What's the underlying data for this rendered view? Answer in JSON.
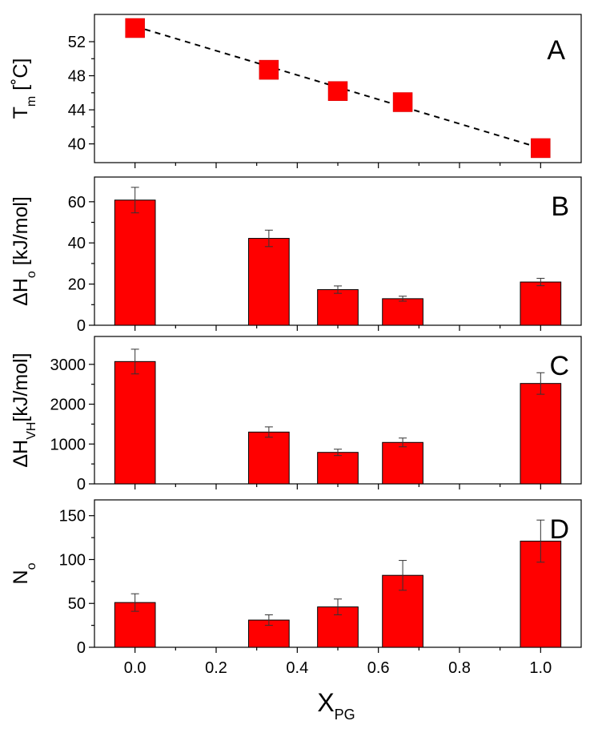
{
  "colors": {
    "bar": "#ff0000",
    "marker": "#ff0000",
    "axis": "#000000"
  },
  "x_axis": {
    "label_main": "X",
    "label_sub": "PG",
    "range": [
      -0.1,
      1.1
    ],
    "ticks": [
      0.0,
      0.2,
      0.4,
      0.6,
      0.8,
      1.0
    ],
    "tick_labels": [
      "0.0",
      "0.2",
      "0.4",
      "0.6",
      "0.8",
      "1.0"
    ]
  },
  "chart_data": [
    {
      "panel": "A",
      "type": "scatter",
      "ylabel_main": "T",
      "ylabel_sub": "m",
      "ylabel_tail": " [˚C]",
      "ylim": [
        37.8,
        55.2
      ],
      "yticks": [
        40,
        44,
        48,
        52
      ],
      "ytick_labels": [
        "40",
        "44",
        "48",
        "52"
      ],
      "x": [
        0.0,
        0.33,
        0.5,
        0.66,
        1.0
      ],
      "y": [
        53.6,
        48.7,
        46.2,
        44.9,
        39.5
      ],
      "fit_line": {
        "x": [
          0.0,
          1.0
        ],
        "y": [
          53.8,
          39.5
        ],
        "style": "dashed"
      }
    },
    {
      "panel": "B",
      "type": "bar",
      "ylabel_main": "ΔH",
      "ylabel_sub": "o",
      "ylabel_tail": " [kJ/mol]",
      "ylim": [
        0,
        72
      ],
      "yticks": [
        0,
        20,
        40,
        60
      ],
      "ytick_labels": [
        "0",
        "20",
        "40",
        "60"
      ],
      "x": [
        0.0,
        0.33,
        0.5,
        0.66,
        1.0
      ],
      "values": [
        60.8,
        42.2,
        17.3,
        12.9,
        21.0
      ],
      "errors": [
        6.2,
        4.0,
        1.8,
        1.2,
        1.8
      ],
      "bar_width": 0.1
    },
    {
      "panel": "C",
      "type": "bar",
      "ylabel_main": "ΔH",
      "ylabel_sub": "VH",
      "ylabel_tail": "[kJ/mol]",
      "ylim": [
        0,
        3700
      ],
      "yticks": [
        0,
        1000,
        2000,
        3000
      ],
      "ytick_labels": [
        "0",
        "1000",
        "2000",
        "3000"
      ],
      "x": [
        0.0,
        0.33,
        0.5,
        0.66,
        1.0
      ],
      "values": [
        3070,
        1300,
        790,
        1040,
        2520
      ],
      "errors": [
        310,
        130,
        80,
        110,
        270
      ],
      "bar_width": 0.1
    },
    {
      "panel": "D",
      "type": "bar",
      "ylabel_main": "N",
      "ylabel_sub": "o",
      "ylabel_tail": "",
      "ylim": [
        0,
        168
      ],
      "yticks": [
        0,
        50,
        100,
        150
      ],
      "ytick_labels": [
        "0",
        "50",
        "100",
        "150"
      ],
      "x": [
        0.0,
        0.33,
        0.5,
        0.66,
        1.0
      ],
      "values": [
        51,
        31,
        46,
        82,
        121
      ],
      "errors": [
        10,
        6,
        9,
        17,
        24
      ],
      "bar_width": 0.1
    }
  ]
}
